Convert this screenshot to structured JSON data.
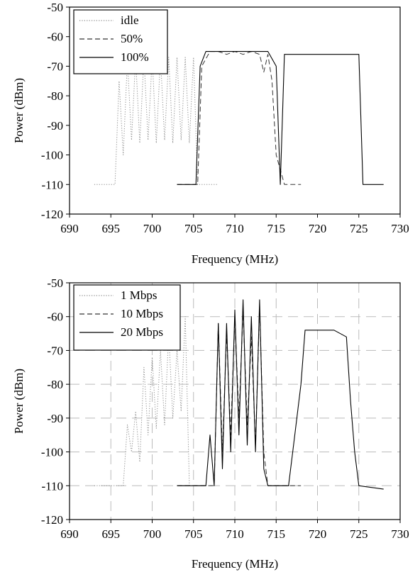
{
  "chart_data": [
    {
      "type": "line",
      "title": "",
      "xlabel": "Frequency (MHz)",
      "ylabel": "Power (dBm)",
      "xlim": [
        690,
        730
      ],
      "ylim": [
        -120,
        -50
      ],
      "xticks": [
        "690",
        "695",
        "700",
        "705",
        "710",
        "715",
        "720",
        "725",
        "730"
      ],
      "yticks": [
        "-50",
        "-60",
        "-70",
        "-80",
        "-90",
        "-100",
        "-110",
        "-120"
      ],
      "grid": false,
      "legend_position": "top-left",
      "series": [
        {
          "name": "idle",
          "style": "dotted",
          "x": [
            693,
            695.5,
            696,
            696.5,
            697,
            697.5,
            698,
            698.5,
            699,
            699.5,
            700,
            700.5,
            701,
            701.5,
            702,
            702.5,
            703,
            703.5,
            704,
            704.5,
            705,
            705.5,
            706,
            707,
            708
          ],
          "y": [
            -110,
            -110,
            -75,
            -100,
            -68,
            -95,
            -67,
            -96,
            -67,
            -95,
            -67,
            -96,
            -67,
            -95,
            -67,
            -96,
            -67,
            -95,
            -67,
            -96,
            -67,
            -110,
            -110,
            -110,
            -110
          ]
        },
        {
          "name": "50%",
          "style": "dashed",
          "x": [
            703,
            705.5,
            706,
            707,
            708,
            709,
            710,
            711,
            712,
            713,
            713.5,
            714,
            714.5,
            715,
            716,
            717,
            718
          ],
          "y": [
            -110,
            -110,
            -70,
            -65,
            -65,
            -66,
            -65,
            -66,
            -65,
            -66,
            -72,
            -66,
            -75,
            -100,
            -110,
            -110,
            -110
          ]
        },
        {
          "name": "100%",
          "style": "solid",
          "x": [
            703,
            705.3,
            705.8,
            706.5,
            708,
            710,
            712,
            714,
            715,
            715.5,
            716,
            718,
            720,
            722,
            724,
            725,
            725.5,
            726,
            728
          ],
          "y": [
            -110,
            -110,
            -70,
            -65,
            -65,
            -65,
            -65,
            -65,
            -70,
            -110,
            -66,
            -66,
            -66,
            -66,
            -66,
            -66,
            -110,
            -110,
            -110
          ]
        }
      ]
    },
    {
      "type": "line",
      "title": "",
      "xlabel": "Frequency (MHz)",
      "ylabel": "Power (dBm)",
      "xlim": [
        690,
        730
      ],
      "ylim": [
        -120,
        -50
      ],
      "xticks": [
        "690",
        "695",
        "700",
        "705",
        "710",
        "715",
        "720",
        "725",
        "730"
      ],
      "yticks": [
        "-50",
        "-60",
        "-70",
        "-80",
        "-90",
        "-100",
        "-110",
        "-120"
      ],
      "grid": true,
      "legend_position": "top-left",
      "series": [
        {
          "name": "1 Mbps",
          "style": "dotted",
          "x": [
            693,
            696.5,
            697,
            697.5,
            698,
            698.5,
            699,
            699.5,
            700,
            700.5,
            701,
            701.5,
            702,
            702.5,
            703,
            703.5,
            704,
            704.5
          ],
          "y": [
            -110,
            -110,
            -92,
            -100,
            -88,
            -103,
            -75,
            -95,
            -72,
            -93,
            -70,
            -92,
            -65,
            -90,
            -70,
            -88,
            -60,
            -110
          ]
        },
        {
          "name": "10 Mbps",
          "style": "dashed",
          "x": [
            703,
            707.5,
            708,
            708.5,
            709,
            709.5,
            710,
            710.5,
            711,
            711.5,
            712,
            712.5,
            713,
            713.5,
            714,
            716,
            718
          ],
          "y": [
            -110,
            -110,
            -62,
            -100,
            -65,
            -95,
            -60,
            -90,
            -58,
            -92,
            -66,
            -98,
            -57,
            -100,
            -110,
            -110,
            -110
          ]
        },
        {
          "name": "20 Mbps",
          "style": "solid",
          "x": [
            703,
            706.5,
            707,
            707.5,
            708,
            708.5,
            709,
            709.5,
            710,
            710.5,
            711,
            711.5,
            712,
            712.5,
            713,
            713.5,
            714,
            716.5,
            717,
            717.5,
            718,
            718.5,
            720,
            722,
            723.5,
            724,
            724.5,
            725,
            728
          ],
          "y": [
            -110,
            -110,
            -95,
            -110,
            -62,
            -105,
            -62,
            -100,
            -58,
            -95,
            -55,
            -98,
            -60,
            -100,
            -55,
            -105,
            -110,
            -110,
            -100,
            -90,
            -80,
            -64,
            -64,
            -64,
            -66,
            -85,
            -100,
            -110,
            -111
          ]
        }
      ]
    }
  ],
  "legends": [
    [
      {
        "label": "idle",
        "style": "dotted"
      },
      {
        "label": "50%",
        "style": "dashed"
      },
      {
        "label": "100%",
        "style": "solid"
      }
    ],
    [
      {
        "label": "1 Mbps",
        "style": "dotted"
      },
      {
        "label": "10 Mbps",
        "style": "dashed"
      },
      {
        "label": "20 Mbps",
        "style": "solid"
      }
    ]
  ]
}
